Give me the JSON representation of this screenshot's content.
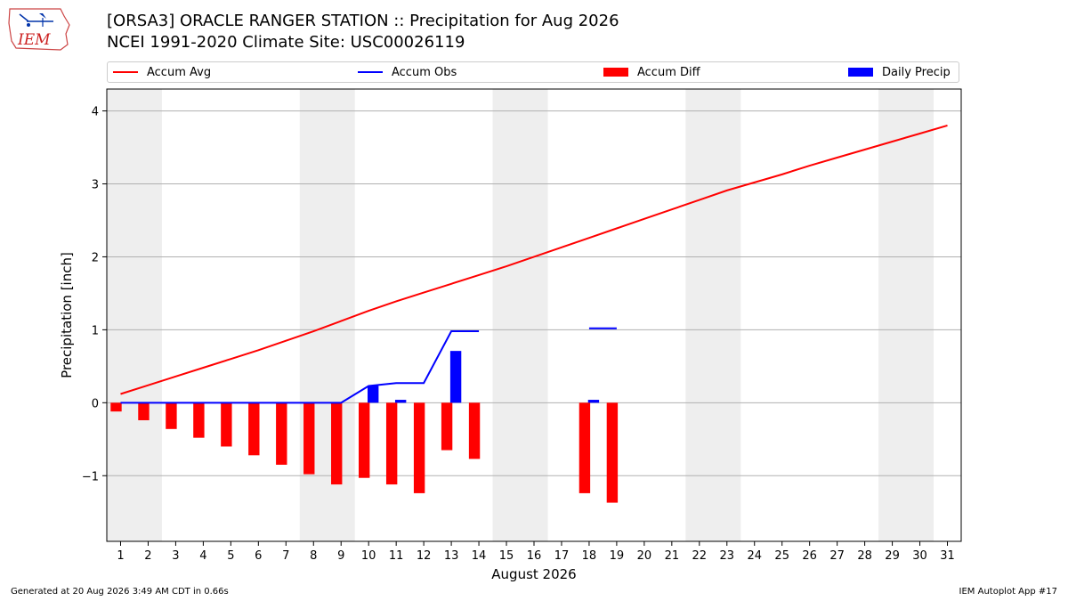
{
  "header": {
    "title_line1": "[ORSA3] ORACLE RANGER STATION :: Precipitation for Aug 2026",
    "title_line2": "NCEI 1991-2020 Climate Site: USC00026119",
    "logo_text": "IEM"
  },
  "footer": {
    "generated": "Generated at 20 Aug 2026 3:49 AM CDT in 0.66s",
    "app": "IEM Autoplot App #17"
  },
  "colors": {
    "avg": "#ff0000",
    "obs": "#0000ff",
    "diff": "#ff0000",
    "daily": "#0000ff",
    "weekend_band": "#eeeeee",
    "grid": "#b0b0b0"
  },
  "chart_data": {
    "type": "bar",
    "xlabel": "August 2026",
    "ylabel": "Precipitation [inch]",
    "xlim": [
      0.5,
      31.5
    ],
    "ylim": [
      -1.9,
      4.3
    ],
    "yticks": [
      -1,
      0,
      1,
      2,
      3,
      4
    ],
    "ytick_labels": [
      "−1",
      "0",
      "1",
      "2",
      "3",
      "4"
    ],
    "days": [
      1,
      2,
      3,
      4,
      5,
      6,
      7,
      8,
      9,
      10,
      11,
      12,
      13,
      14,
      15,
      16,
      17,
      18,
      19,
      20,
      21,
      22,
      23,
      24,
      25,
      26,
      27,
      28,
      29,
      30,
      31
    ],
    "weekend_bands": [
      [
        0.5,
        2.5
      ],
      [
        7.5,
        9.5
      ],
      [
        14.5,
        16.5
      ],
      [
        21.5,
        23.5
      ],
      [
        28.5,
        30.5
      ]
    ],
    "legend": [
      "Accum Avg",
      "Accum Obs",
      "Accum Diff",
      "Daily Precip"
    ],
    "legend_position": "top",
    "grid": "y",
    "accum_avg": [
      0.12,
      0.24,
      0.36,
      0.48,
      0.6,
      0.72,
      0.85,
      0.98,
      1.12,
      1.26,
      1.39,
      1.51,
      1.63,
      1.75,
      1.87,
      2.0,
      2.13,
      2.26,
      2.39,
      2.52,
      2.65,
      2.78,
      2.91,
      3.02,
      3.13,
      3.25,
      3.36,
      3.47,
      3.58,
      3.69,
      3.8
    ],
    "accum_obs": [
      {
        "segment": [
          [
            1,
            0
          ],
          [
            2,
            0
          ],
          [
            3,
            0
          ],
          [
            4,
            0
          ],
          [
            5,
            0
          ],
          [
            6,
            0
          ],
          [
            7,
            0
          ],
          [
            8,
            0
          ],
          [
            9,
            0
          ],
          [
            10,
            0.23
          ],
          [
            11,
            0.27
          ],
          [
            12,
            0.27
          ],
          [
            13,
            0.98
          ],
          [
            14,
            0.98
          ]
        ]
      },
      {
        "segment": [
          [
            18,
            1.02
          ],
          [
            19,
            1.02
          ]
        ]
      }
    ],
    "accum_diff": [
      {
        "day": 1,
        "value": -0.12
      },
      {
        "day": 2,
        "value": -0.24
      },
      {
        "day": 3,
        "value": -0.36
      },
      {
        "day": 4,
        "value": -0.48
      },
      {
        "day": 5,
        "value": -0.6
      },
      {
        "day": 6,
        "value": -0.72
      },
      {
        "day": 7,
        "value": -0.85
      },
      {
        "day": 8,
        "value": -0.98
      },
      {
        "day": 9,
        "value": -1.12
      },
      {
        "day": 10,
        "value": -1.03
      },
      {
        "day": 11,
        "value": -1.12
      },
      {
        "day": 12,
        "value": -1.24
      },
      {
        "day": 13,
        "value": -0.65
      },
      {
        "day": 14,
        "value": -0.77
      },
      {
        "day": 18,
        "value": -1.24
      },
      {
        "day": 19,
        "value": -1.37
      }
    ],
    "daily_precip": [
      {
        "day": 10,
        "value": 0.23
      },
      {
        "day": 11,
        "value": 0.04
      },
      {
        "day": 13,
        "value": 0.71
      },
      {
        "day": 18,
        "value": 0.04
      }
    ]
  }
}
